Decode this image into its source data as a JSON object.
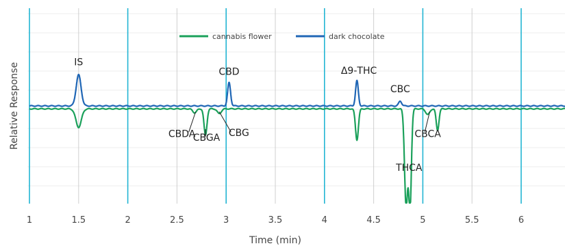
{
  "chart_data": {
    "type": "line",
    "title": "",
    "xlabel": "Time (min)",
    "ylabel": "Relative Response",
    "xlim": [
      1,
      6.45
    ],
    "ylim": [
      -1.0,
      1.0
    ],
    "x_ticks": [
      1,
      1.5,
      2,
      2.5,
      3,
      3.5,
      4,
      4.5,
      5,
      5.5,
      6
    ],
    "x_tick_labels": [
      "1",
      "1.5",
      "2",
      "2.5",
      "3",
      "3.5",
      "4",
      "4.5",
      "5",
      "5.5",
      "6"
    ],
    "major_gridlines_x": [
      1,
      2,
      3,
      4,
      5,
      6
    ],
    "grid": true,
    "legend_position": "top-center",
    "series": [
      {
        "name": "cannabis flower",
        "color": "#1aa05a",
        "baseline": -0.03,
        "peaks": [
          {
            "x": 1.5,
            "height": -0.19,
            "width": 0.028
          },
          {
            "x": 2.68,
            "height": -0.04,
            "width": 0.02
          },
          {
            "x": 2.79,
            "height": -0.27,
            "width": 0.015
          },
          {
            "x": 2.93,
            "height": -0.05,
            "width": 0.02
          },
          {
            "x": 4.33,
            "height": -0.32,
            "width": 0.015
          },
          {
            "x": 4.83,
            "height": -1.0,
            "width": 0.016
          },
          {
            "x": 4.87,
            "height": -1.0,
            "width": 0.014
          },
          {
            "x": 5.05,
            "height": -0.06,
            "width": 0.02
          },
          {
            "x": 5.15,
            "height": -0.22,
            "width": 0.014
          }
        ]
      },
      {
        "name": "dark chocolate",
        "color": "#1f66b5",
        "baseline": 0.0,
        "peaks": [
          {
            "x": 1.5,
            "height": 0.32,
            "width": 0.025
          },
          {
            "x": 3.03,
            "height": 0.24,
            "width": 0.015
          },
          {
            "x": 4.33,
            "height": 0.26,
            "width": 0.014
          },
          {
            "x": 4.77,
            "height": 0.05,
            "width": 0.015
          }
        ]
      }
    ],
    "annotations": [
      {
        "text": "IS",
        "x": 1.5,
        "y": 0.42
      },
      {
        "text": "CBD",
        "x": 3.03,
        "y": 0.32
      },
      {
        "text": "Δ9-THC",
        "x": 4.35,
        "y": 0.33
      },
      {
        "text": "CBC",
        "x": 4.77,
        "y": 0.14
      },
      {
        "text": "CBDA",
        "x": 2.55,
        "y": -0.32
      },
      {
        "text": "CBGA",
        "x": 2.8,
        "y": -0.36
      },
      {
        "text": "CBG",
        "x": 3.13,
        "y": -0.31
      },
      {
        "text": "CBCA",
        "x": 5.05,
        "y": -0.32
      },
      {
        "text": "THCA",
        "x": 4.86,
        "y": -0.67
      }
    ]
  }
}
